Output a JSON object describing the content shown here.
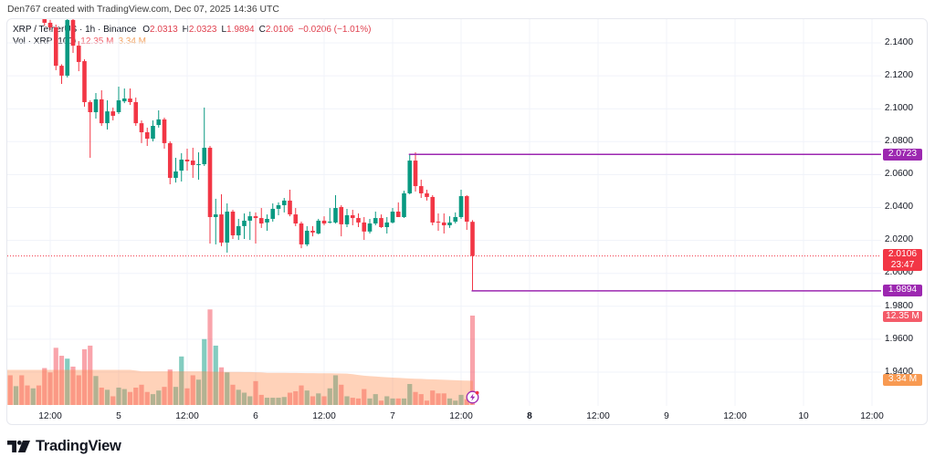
{
  "header": {
    "credit": "Den767 created with TradingView.com, Dec 07, 2025 14:36 UTC"
  },
  "legend": {
    "symbol": "XRP / TetherUS · 1h · Binance",
    "open_label": "O",
    "open": "2.0313",
    "high_label": "H",
    "high": "2.0323",
    "low_label": "L",
    "low": "1.9894",
    "close_label": "C",
    "close": "2.0106",
    "change": "−0.0206 (−1.01%)",
    "vol_title": "Vol · XRP (100)",
    "vol_value": "12.35 M",
    "vol_ma": "3.34 M"
  },
  "price_axis": {
    "ticks": [
      "2.1400",
      "2.1200",
      "2.1000",
      "2.0800",
      "2.0600",
      "2.0400",
      "2.0200",
      "2.0000",
      "1.9800",
      "1.9600",
      "1.9400"
    ],
    "labels": {
      "high_line": "2.0723",
      "last_price": "2.0106",
      "countdown": "23:47",
      "low_line": "1.9894",
      "volume": "12.35 M",
      "volume_ma": "3.34 M"
    }
  },
  "time_axis": {
    "ticks": [
      "12:00",
      "5",
      "12:00",
      "6",
      "12:00",
      "7",
      "12:00",
      "8",
      "12:00",
      "9",
      "12:00",
      "10",
      "12:00"
    ]
  },
  "branding": {
    "logo_text": "TradingView"
  },
  "colors": {
    "up": "#089981",
    "down": "#f23645",
    "vol_up": "rgba(8,153,129,0.5)",
    "vol_down": "rgba(242,54,69,0.45)",
    "vol_ma_area": "rgba(255,138,70,0.38)",
    "annotation_line": "#9c27b0",
    "grid": "#f0f3fa",
    "vol_label": "#f45b69",
    "vol_ma_label": "#f89a52"
  },
  "chart_data": {
    "type": "candlestick",
    "title": "XRP / TetherUS · 1h · Binance",
    "interval": "1h",
    "xlabel": "",
    "ylabel": "",
    "ylim": [
      1.93,
      2.155
    ],
    "y_ticks": [
      2.14,
      2.12,
      2.1,
      2.08,
      2.06,
      2.04,
      2.02,
      2.0,
      1.98,
      1.96,
      1.94
    ],
    "x_ticks": [
      "12:00",
      "5",
      "12:00",
      "6",
      "12:00",
      "7",
      "12:00",
      "8",
      "12:00",
      "9",
      "12:00",
      "10",
      "12:00"
    ],
    "grid": true,
    "last": {
      "open": 2.0313,
      "high": 2.0323,
      "low": 1.9894,
      "close": 2.0106,
      "change": -0.0206,
      "change_pct": -1.01
    },
    "annotations": [
      {
        "type": "hline",
        "price": 2.0723,
        "from_index": 70,
        "color": "#9c27b0"
      },
      {
        "type": "hline",
        "price": 1.9894,
        "from_index": 81,
        "color": "#9c27b0"
      },
      {
        "type": "last_price_line",
        "price": 2.0106,
        "color": "#f23645"
      }
    ],
    "volume_unit": "M",
    "volume_ma_length": 100,
    "candles": [
      {
        "v": 4.1,
        "up": false
      },
      {
        "v": 2.6,
        "up": true
      },
      {
        "v": 4.1,
        "up": false
      },
      {
        "v": 2.7,
        "up": false
      },
      {
        "v": 2.3,
        "up": true
      },
      {
        "v": 2.7,
        "up": false
      },
      {
        "o": 2.155,
        "h": 2.1561,
        "l": 2.1505,
        "c": 2.1522,
        "v": 5.1
      },
      {
        "o": 2.1522,
        "h": 2.1539,
        "l": 2.1478,
        "c": 2.1494,
        "v": 4.5
      },
      {
        "o": 2.1494,
        "h": 2.1511,
        "l": 2.1234,
        "c": 2.1261,
        "v": 7.9
      },
      {
        "o": 2.1261,
        "h": 2.127,
        "l": 2.1151,
        "c": 2.1201,
        "v": 6.8
      },
      {
        "o": 2.1201,
        "h": 2.1566,
        "l": 2.119,
        "c": 2.1539,
        "v": 6.4
      },
      {
        "o": 2.1539,
        "h": 2.155,
        "l": 2.1339,
        "c": 2.1383,
        "v": 5.3
      },
      {
        "o": 2.1383,
        "h": 2.1411,
        "l": 2.1228,
        "c": 2.1284,
        "v": 4.1
      },
      {
        "o": 2.1289,
        "h": 2.13,
        "l": 2.1012,
        "c": 2.104,
        "v": 7.7
      },
      {
        "o": 2.104,
        "h": 2.1051,
        "l": 2.0702,
        "c": 2.0979,
        "v": 8.2
      },
      {
        "o": 2.0979,
        "h": 2.1095,
        "l": 2.094,
        "c": 2.1057,
        "v": 4.0
      },
      {
        "o": 2.1057,
        "h": 2.1112,
        "l": 2.0896,
        "c": 2.0912,
        "v": 2.4
      },
      {
        "o": 2.0912,
        "h": 2.1051,
        "l": 2.0874,
        "c": 2.0984,
        "v": 2.1
      },
      {
        "o": 2.0984,
        "h": 2.1007,
        "l": 2.0929,
        "c": 2.0957,
        "v": 1.2
      },
      {
        "o": 2.0979,
        "h": 2.1134,
        "l": 2.0968,
        "c": 2.1051,
        "v": 2.4
      },
      {
        "o": 2.1045,
        "h": 2.1123,
        "l": 2.1034,
        "c": 2.1062,
        "v": 2.2
      },
      {
        "o": 2.1062,
        "h": 2.1123,
        "l": 2.1023,
        "c": 2.104,
        "v": 1.8
      },
      {
        "o": 2.104,
        "h": 2.1068,
        "l": 2.0896,
        "c": 2.0912,
        "v": 2.4
      },
      {
        "o": 2.0912,
        "h": 2.0929,
        "l": 2.0791,
        "c": 2.0857,
        "v": 2.8
      },
      {
        "o": 2.0857,
        "h": 2.0885,
        "l": 2.0774,
        "c": 2.0818,
        "v": 1.8
      },
      {
        "o": 2.0818,
        "h": 2.0929,
        "l": 2.0802,
        "c": 2.0896,
        "v": 1.5
      },
      {
        "o": 2.0901,
        "h": 2.099,
        "l": 2.0885,
        "c": 2.0935,
        "v": 2.0
      },
      {
        "o": 2.0935,
        "h": 2.0946,
        "l": 2.0757,
        "c": 2.0791,
        "v": 2.5
      },
      {
        "o": 2.0791,
        "h": 2.0802,
        "l": 2.0541,
        "c": 2.058,
        "v": 4.9
      },
      {
        "o": 2.058,
        "h": 2.0702,
        "l": 2.0552,
        "c": 2.0619,
        "v": 2.5
      },
      {
        "o": 2.0624,
        "h": 2.073,
        "l": 2.0558,
        "c": 2.0691,
        "v": 6.7
      },
      {
        "o": 2.0691,
        "h": 2.0757,
        "l": 2.0624,
        "c": 2.068,
        "v": 2.3
      },
      {
        "o": 2.0685,
        "h": 2.0763,
        "l": 2.058,
        "c": 2.0658,
        "v": 4.1
      },
      {
        "o": 2.0658,
        "h": 2.0735,
        "l": 2.0569,
        "c": 2.0663,
        "v": 3.5
      },
      {
        "o": 2.0663,
        "h": 2.1007,
        "l": 2.0652,
        "c": 2.0763,
        "v": 9.1
      },
      {
        "o": 2.0763,
        "h": 2.0774,
        "l": 2.0181,
        "c": 2.0342,
        "v": 13.2
      },
      {
        "o": 2.0342,
        "h": 2.0453,
        "l": 2.0176,
        "c": 2.0358,
        "v": 8.2
      },
      {
        "o": 2.0358,
        "h": 2.048,
        "l": 2.0165,
        "c": 2.0187,
        "v": 5.2
      },
      {
        "o": 2.0187,
        "h": 2.0425,
        "l": 2.0126,
        "c": 2.0375,
        "v": 4.5
      },
      {
        "o": 2.0375,
        "h": 2.0386,
        "l": 2.0209,
        "c": 2.0231,
        "v": 2.8
      },
      {
        "o": 2.0231,
        "h": 2.0331,
        "l": 2.0203,
        "c": 2.0287,
        "v": 2.1
      },
      {
        "o": 2.0287,
        "h": 2.0364,
        "l": 2.0209,
        "c": 2.032,
        "v": 1.7
      },
      {
        "o": 2.032,
        "h": 2.0375,
        "l": 2.0203,
        "c": 2.0347,
        "v": 1.2
      },
      {
        "o": 2.0347,
        "h": 2.037,
        "l": 2.0181,
        "c": 2.0336,
        "v": 3.3
      },
      {
        "o": 2.0336,
        "h": 2.0397,
        "l": 2.0276,
        "c": 2.0303,
        "v": 1.4
      },
      {
        "o": 2.0309,
        "h": 2.0358,
        "l": 2.0259,
        "c": 2.0331,
        "v": 1.0
      },
      {
        "o": 2.0331,
        "h": 2.0425,
        "l": 2.0314,
        "c": 2.0392,
        "v": 1.0
      },
      {
        "o": 2.0392,
        "h": 2.0431,
        "l": 2.0353,
        "c": 2.0414,
        "v": 1.0
      },
      {
        "o": 2.0414,
        "h": 2.0458,
        "l": 2.037,
        "c": 2.0442,
        "v": 1.1
      },
      {
        "o": 2.0442,
        "h": 2.0508,
        "l": 2.0347,
        "c": 2.0358,
        "v": 1.7
      },
      {
        "o": 2.0358,
        "h": 2.0397,
        "l": 2.0287,
        "c": 2.0303,
        "v": 1.9
      },
      {
        "o": 2.0303,
        "h": 2.0314,
        "l": 2.0153,
        "c": 2.0176,
        "v": 2.7
      },
      {
        "o": 2.0176,
        "h": 2.0287,
        "l": 2.0165,
        "c": 2.0259,
        "v": 2.0
      },
      {
        "o": 2.0259,
        "h": 2.0287,
        "l": 2.0225,
        "c": 2.0248,
        "v": 1.2
      },
      {
        "o": 2.0242,
        "h": 2.0331,
        "l": 2.0237,
        "c": 2.032,
        "v": 1.6
      },
      {
        "o": 2.032,
        "h": 2.0347,
        "l": 2.0292,
        "c": 2.0303,
        "v": 1.2
      },
      {
        "o": 2.0309,
        "h": 2.0397,
        "l": 2.0303,
        "c": 2.0314,
        "v": 2.3
      },
      {
        "o": 2.0309,
        "h": 2.0475,
        "l": 2.0303,
        "c": 2.0397,
        "v": 4.1
      },
      {
        "o": 2.0403,
        "h": 2.0414,
        "l": 2.0225,
        "c": 2.0298,
        "v": 2.8
      },
      {
        "o": 2.0298,
        "h": 2.0392,
        "l": 2.0281,
        "c": 2.0353,
        "v": 1.2
      },
      {
        "o": 2.0353,
        "h": 2.0386,
        "l": 2.0292,
        "c": 2.0336,
        "v": 1.0
      },
      {
        "o": 2.0336,
        "h": 2.0364,
        "l": 2.0281,
        "c": 2.0309,
        "v": 0.9
      },
      {
        "o": 2.0309,
        "h": 2.0342,
        "l": 2.0203,
        "c": 2.0254,
        "v": 2.2
      },
      {
        "o": 2.0254,
        "h": 2.0331,
        "l": 2.0242,
        "c": 2.0303,
        "v": 0.9
      },
      {
        "o": 2.0303,
        "h": 2.0375,
        "l": 2.0292,
        "c": 2.0336,
        "v": 1.5
      },
      {
        "o": 2.0336,
        "h": 2.0358,
        "l": 2.0276,
        "c": 2.0281,
        "v": 0.6
      },
      {
        "o": 2.0281,
        "h": 2.0342,
        "l": 2.0242,
        "c": 2.0309,
        "v": 1.2
      },
      {
        "o": 2.0309,
        "h": 2.0397,
        "l": 2.0303,
        "c": 2.0375,
        "v": 0.9
      },
      {
        "o": 2.0375,
        "h": 2.0431,
        "l": 2.0342,
        "c": 2.0342,
        "v": 0.9
      },
      {
        "o": 2.0342,
        "h": 2.0502,
        "l": 2.0336,
        "c": 2.0486,
        "v": 0.9
      },
      {
        "o": 2.0486,
        "h": 2.0723,
        "l": 2.048,
        "c": 2.0685,
        "v": 2.9
      },
      {
        "o": 2.0685,
        "h": 2.0735,
        "l": 2.0497,
        "c": 2.053,
        "v": 1.8
      },
      {
        "o": 2.053,
        "h": 2.0569,
        "l": 2.0458,
        "c": 2.0486,
        "v": 1.5
      },
      {
        "o": 2.0486,
        "h": 2.0508,
        "l": 2.0442,
        "c": 2.0464,
        "v": 0.6
      },
      {
        "o": 2.0464,
        "h": 2.0475,
        "l": 2.0292,
        "c": 2.0309,
        "v": 2.0
      },
      {
        "o": 2.0314,
        "h": 2.0364,
        "l": 2.0259,
        "c": 2.0309,
        "v": 1.6
      },
      {
        "o": 2.0309,
        "h": 2.0364,
        "l": 2.0242,
        "c": 2.0292,
        "v": 1.6
      },
      {
        "o": 2.0292,
        "h": 2.0347,
        "l": 2.0276,
        "c": 2.0309,
        "v": 0.9
      },
      {
        "o": 2.0314,
        "h": 2.037,
        "l": 2.0303,
        "c": 2.0342,
        "v": 0.6
      },
      {
        "o": 2.0342,
        "h": 2.0508,
        "l": 2.0331,
        "c": 2.0469,
        "v": 1.4
      },
      {
        "o": 2.0469,
        "h": 2.0475,
        "l": 2.0264,
        "c": 2.0314,
        "v": 0.8
      },
      {
        "o": 2.0313,
        "h": 2.0323,
        "l": 1.9894,
        "c": 2.0106,
        "v": 12.35
      }
    ],
    "volume_ma": [
      4.85,
      4.85,
      4.85,
      4.85,
      4.85,
      4.85,
      4.85,
      4.85,
      4.85,
      4.85,
      4.85,
      4.85,
      4.85,
      4.85,
      4.85,
      4.85,
      4.85,
      4.85,
      4.85,
      4.85,
      4.85,
      4.85,
      4.75,
      4.65,
      4.65,
      4.65,
      4.65,
      4.65,
      4.65,
      4.65,
      4.65,
      4.65,
      4.65,
      4.65,
      4.65,
      4.6,
      4.6,
      4.58,
      4.58,
      4.56,
      4.56,
      4.55,
      4.55,
      4.53,
      4.5,
      4.45,
      4.45,
      4.44,
      4.43,
      4.42,
      4.42,
      4.41,
      4.4,
      4.4,
      4.39,
      4.38,
      4.37,
      4.36,
      4.35,
      4.33,
      4.25,
      4.15,
      4.05,
      3.98,
      3.93,
      3.88,
      3.83,
      3.78,
      3.74,
      3.7,
      3.66,
      3.63,
      3.6,
      3.57,
      3.54,
      3.51,
      3.48,
      3.45,
      3.42,
      3.39,
      3.36,
      3.34
    ]
  }
}
